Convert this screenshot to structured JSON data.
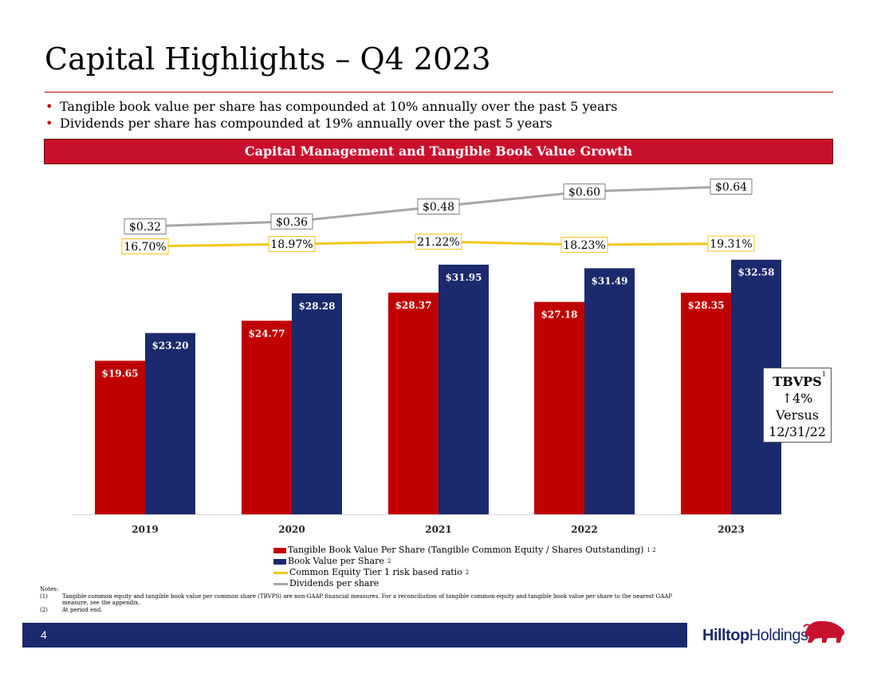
{
  "page": {
    "title": "Capital Highlights – Q4 2023",
    "bullets": [
      "Tangible book value per share has compounded at 10% annually over the past 5 years",
      "Dividends per share has compounded at 19% annually over the past 5 years"
    ],
    "banner": "Capital Management and Tangible Book Value Growth",
    "callout": {
      "title": "TBVPS",
      "sup": "1",
      "line1": "↑4%",
      "line2": "Versus",
      "line3": "12/31/22"
    },
    "notes": {
      "heading": "Notes:",
      "items": [
        {
          "key": "(1)",
          "text": "Tangible common equity and tangible book value per common share (TBVPS) are non-GAAP financial measures. For a reconciliation of tangible common equity and tangible book value per share to the nearest GAAP measure, see the appendix."
        },
        {
          "key": "(2)",
          "text": "At period end."
        }
      ]
    },
    "page_number": "4",
    "logo": {
      "bold": "Hilltop",
      "regular": "Holdings",
      "mark": "period"
    }
  },
  "colors": {
    "red": "#c00000",
    "navy": "#1a2a6c",
    "gold": "#f5c518",
    "gray": "#a6a6a6",
    "banner": "#c8102e"
  },
  "chart_data": {
    "type": "bar",
    "categories": [
      "2019",
      "2020",
      "2021",
      "2022",
      "2023"
    ],
    "series": [
      {
        "name": "Tangible Book Value Per Share (Tangible Common Equity / Shares Outstanding)",
        "sup": "1 2",
        "kind": "bar",
        "color": "#c00000",
        "values": [
          19.65,
          24.77,
          28.37,
          27.18,
          28.35
        ],
        "labels": [
          "$19.65",
          "$24.77",
          "$28.37",
          "$27.18",
          "$28.35"
        ]
      },
      {
        "name": "Book Value per Share",
        "sup": "2",
        "kind": "bar",
        "color": "#1a2a6c",
        "values": [
          23.2,
          28.28,
          31.95,
          31.49,
          32.58
        ],
        "labels": [
          "$23.20",
          "$28.28",
          "$31.95",
          "$31.49",
          "$32.58"
        ]
      },
      {
        "name": "Common Equity Tier 1 risk based ratio",
        "sup": "2",
        "kind": "line",
        "color": "#f5c518",
        "values": [
          16.7,
          18.97,
          21.22,
          18.23,
          19.31
        ],
        "labels": [
          "16.70%",
          "18.97%",
          "21.22%",
          "18.23%",
          "19.31%"
        ]
      },
      {
        "name": "Dividends per share",
        "sup": "",
        "kind": "line",
        "color": "#a6a6a6",
        "values": [
          0.32,
          0.36,
          0.48,
          0.6,
          0.64
        ],
        "labels": [
          "$0.32",
          "$0.36",
          "$0.48",
          "$0.60",
          "$0.64"
        ]
      }
    ],
    "legend_position": "bottom",
    "grid": false
  }
}
